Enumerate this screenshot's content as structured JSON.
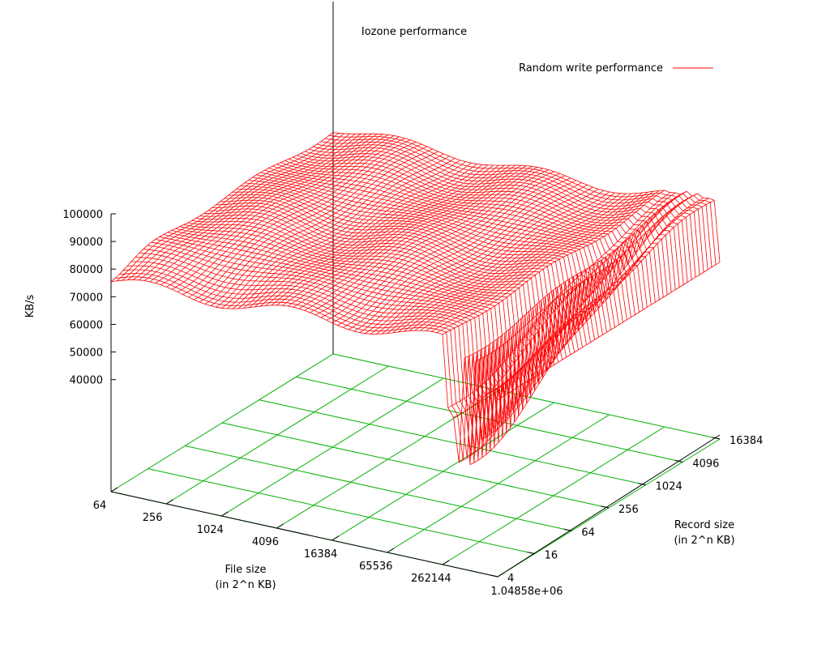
{
  "chart_data": {
    "type": "surface",
    "title": "Iozone performance",
    "zlabel": "KB/s",
    "xlabel_lines": [
      "File size",
      "(in 2^n KB)"
    ],
    "ylabel_lines": [
      "Record size",
      "(in 2^n KB)"
    ],
    "x_ticks": [
      "64",
      "256",
      "1024",
      "4096",
      "16384",
      "65536",
      "262144",
      "1.04858e+06"
    ],
    "y_ticks": [
      "4",
      "16",
      "64",
      "256",
      "1024",
      "4096",
      "16384"
    ],
    "z_ticks": [
      40000,
      50000,
      60000,
      70000,
      80000,
      90000,
      100000
    ],
    "zlim": [
      10000,
      100000
    ],
    "x_range_log2": [
      6,
      20
    ],
    "y_range_log2": [
      2,
      14
    ],
    "grid": true,
    "legend_position": "top-right",
    "series": [
      {
        "name": "Random write performance",
        "color": "#ff0000",
        "base_value": 92000,
        "ridge_value": 87000,
        "dip_x_log2": [
          18.3,
          18.6,
          19.0,
          19.4,
          19.7
        ],
        "dip_min_values": [
          40000,
          48000,
          49000,
          60000,
          66000
        ],
        "edge_end_value": 74000
      }
    ],
    "grid_color": "#00b000"
  }
}
